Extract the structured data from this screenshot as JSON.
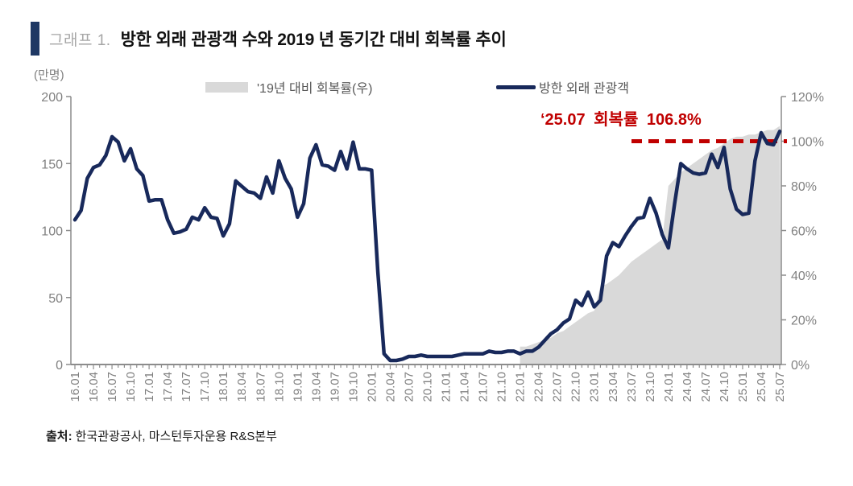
{
  "title": {
    "prefix": "그래프 1.",
    "text": "방한 외래 관광객 수와 2019 년 동기간 대비 회복률 추이"
  },
  "unit_label_left": "(만명)",
  "legend": {
    "area_label": "'19년 대비 회복률(우)",
    "line_label": "방한 외래 관광객"
  },
  "annotation": {
    "text": "‘25.07 회복률 106.8%",
    "color": "#C00000"
  },
  "source": {
    "label": "출처:",
    "text": "한국관광공사, 마스턴투자운용 R&S본부"
  },
  "colors": {
    "line": "#18295B",
    "area": "#D9D9D9",
    "reference": "#C00000",
    "axis": "#8C8C8C",
    "tick_text": "#808080"
  },
  "chart_data": {
    "type": "line+area",
    "x_frequency": "monthly",
    "x_start": "16.01",
    "x_end": "25.07",
    "x_tick_labels": [
      "16.01",
      "16.04",
      "16.07",
      "16.10",
      "17.01",
      "17.04",
      "17.07",
      "17.10",
      "18.01",
      "18.04",
      "18.07",
      "18.10",
      "19.01",
      "19.04",
      "19.07",
      "19.10",
      "20.01",
      "20.04",
      "20.07",
      "20.10",
      "21.01",
      "21.04",
      "21.07",
      "21.10",
      "22.01",
      "22.04",
      "22.07",
      "22.10",
      "23.01",
      "23.04",
      "23.07",
      "23.10",
      "24.01",
      "24.04",
      "24.07",
      "24.10",
      "25.01",
      "25.04",
      "25.07"
    ],
    "left_axis": {
      "label": "(만명)",
      "ticks": [
        0,
        50,
        100,
        150,
        200
      ],
      "max": 200
    },
    "right_axis": {
      "ticks": [
        "0%",
        "20%",
        "40%",
        "60%",
        "80%",
        "100%",
        "120%"
      ],
      "max": 120
    },
    "series": [
      {
        "name": "방한 외래 관광객",
        "type": "line",
        "axis": "left",
        "color": "#18295B",
        "values": [
          108,
          115,
          139,
          147,
          149,
          156,
          170,
          166,
          152,
          161,
          146,
          141,
          122,
          123,
          123,
          108,
          98,
          99,
          101,
          110,
          108,
          117,
          110,
          109,
          96,
          105,
          137,
          133,
          129,
          128,
          124,
          140,
          128,
          152,
          139,
          131,
          110,
          120,
          154,
          164,
          149,
          148,
          145,
          159,
          146,
          166,
          146,
          146,
          145,
          69,
          8,
          3,
          3,
          4,
          6,
          6,
          7,
          6,
          6,
          6,
          6,
          6,
          7,
          8,
          8,
          8,
          8,
          10,
          9,
          9,
          10,
          10,
          8,
          10,
          10,
          13,
          18,
          23,
          26,
          31,
          34,
          48,
          44,
          54,
          43,
          48,
          81,
          91,
          88,
          96,
          103,
          109,
          110,
          124,
          113,
          97,
          87,
          120,
          150,
          146,
          143,
          142,
          143,
          157,
          147,
          162,
          131,
          116,
          112,
          113,
          152,
          173,
          165,
          164,
          174
        ]
      },
      {
        "name": "'19년 대비 회복률(우)",
        "type": "area",
        "axis": "right",
        "color": "#D9D9D9",
        "start_month": "22.01",
        "values": [
          8,
          8,
          9,
          10,
          11,
          12,
          14,
          15,
          17,
          19,
          21,
          23,
          24,
          35,
          36,
          38,
          40,
          43,
          46,
          48,
          50,
          52,
          54,
          56,
          80,
          83,
          86,
          88,
          90,
          92,
          94,
          96,
          97,
          99,
          101,
          102,
          102,
          103,
          103,
          104,
          105,
          105,
          106.8
        ]
      }
    ],
    "reference_line": {
      "value": 100,
      "axis": "right",
      "style": "dashed",
      "color": "#C00000",
      "start_label": "23.07",
      "annotation": "‘25.07 회복률 106.8%"
    }
  }
}
